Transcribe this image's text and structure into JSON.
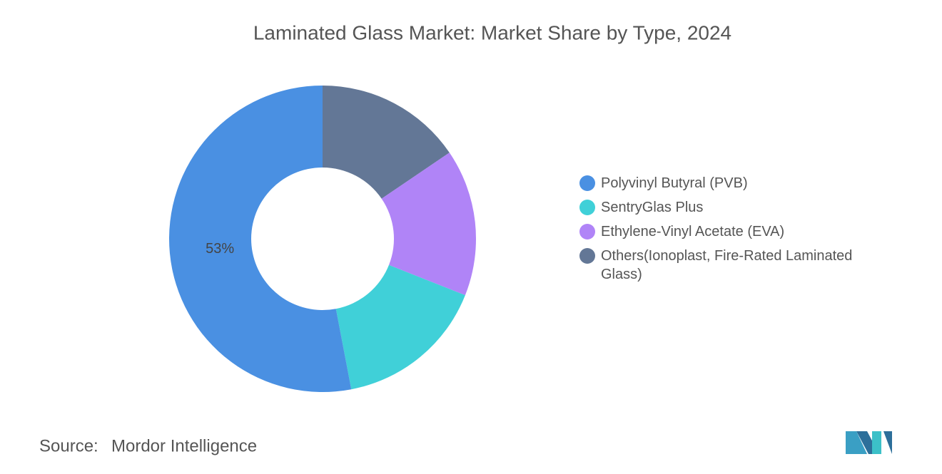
{
  "chart_data": {
    "type": "pie",
    "title": "Laminated Glass Market: Market Share by Type, 2024",
    "categories": [
      "Polyvinyl Butyral (PVB)",
      "SentryGlas Plus",
      "Ethylene-Vinyl Acetate (EVA)",
      "Others(Ionoplast, Fire-Rated Laminated Glass)"
    ],
    "values": [
      53,
      16,
      15.5,
      15.5
    ],
    "value_labels": [
      "53%",
      null,
      null,
      null
    ],
    "colors": [
      "#4a90e2",
      "#40d0d8",
      "#b084f7",
      "#637796"
    ],
    "donut": true,
    "legend": "right"
  },
  "source_label": "Source:",
  "source": "Mordor Intelligence"
}
